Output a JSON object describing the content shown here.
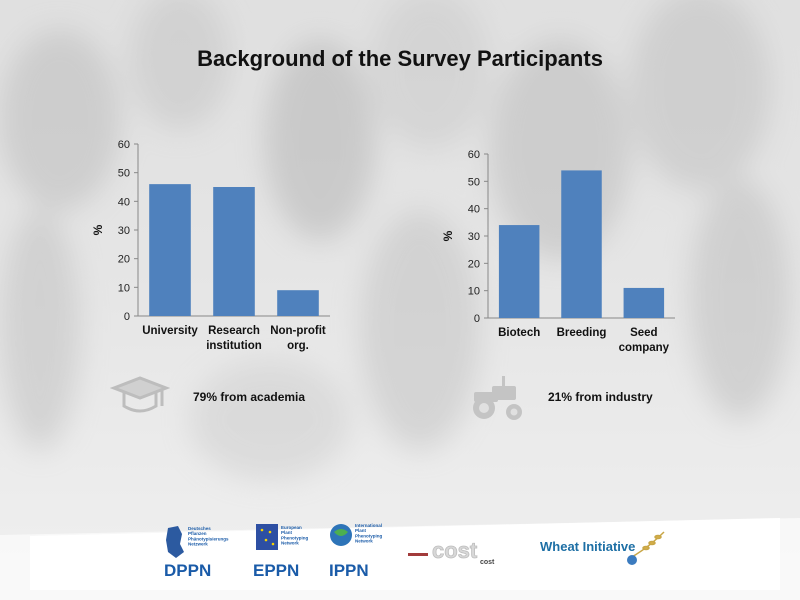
{
  "slide": {
    "title": "Background of the Survey Participants",
    "caption_academia": "79% from academia",
    "caption_industry": "21% from industry"
  },
  "icons": {
    "academia": "graduation-cap-icon",
    "industry": "tractor-icon"
  },
  "chart_data": [
    {
      "type": "bar",
      "categories": [
        [
          "University"
        ],
        [
          "Research",
          "institution"
        ],
        [
          "Non-profit",
          "org."
        ]
      ],
      "values": [
        46,
        45,
        9
      ],
      "ylabel": "%",
      "ylim": [
        0,
        60
      ],
      "yticks": [
        0,
        10,
        20,
        30,
        40,
        50,
        60
      ],
      "grid": false,
      "bar_color": "#4f81bd"
    },
    {
      "type": "bar",
      "categories": [
        [
          "Biotech"
        ],
        [
          "Breeding"
        ],
        [
          "Seed",
          "company"
        ]
      ],
      "values": [
        34,
        54,
        11
      ],
      "ylabel": "%",
      "ylim": [
        0,
        60
      ],
      "yticks": [
        0,
        10,
        20,
        30,
        40,
        50,
        60
      ],
      "grid": false,
      "bar_color": "#4f81bd"
    }
  ],
  "footer": {
    "logos": [
      {
        "name": "dppn-logo",
        "main": "DPPN",
        "small": [
          "Deutsches",
          "Pflanzen",
          "Phänotypisierungs",
          "Netzwerk"
        ],
        "color": "#1a5ba8"
      },
      {
        "name": "eppn-logo",
        "main": "EPPN",
        "small": [
          "European",
          "Plant",
          "Phenotyping",
          "Network"
        ],
        "color": "#1a5ba8"
      },
      {
        "name": "ippn-logo",
        "main": "IPPN",
        "small": [
          "International",
          "Plant",
          "Phenotyping",
          "Network"
        ],
        "color": "#1a5ba8"
      },
      {
        "name": "cost-logo",
        "main": "cost"
      },
      {
        "name": "wheat-initiative-logo",
        "main": "Wheat Initiative",
        "color": "#1d6fa5"
      }
    ]
  }
}
